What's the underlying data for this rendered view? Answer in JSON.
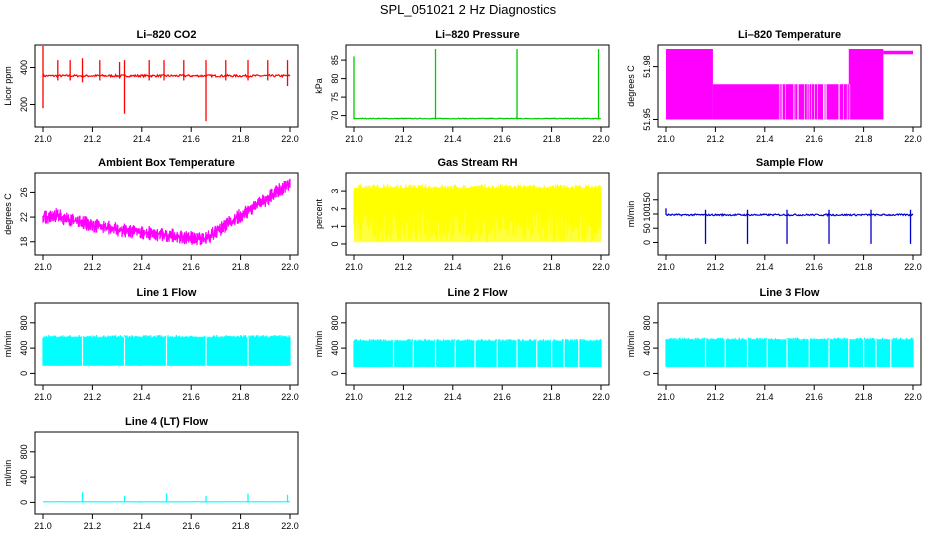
{
  "title": "SPL_051021  2 Hz Diagnostics",
  "chart_data": [
    {
      "type": "line",
      "title": "Li–820 CO2",
      "ylabel": "Licor ppm",
      "color": "#ff0000",
      "xlim": [
        21.0,
        22.0
      ],
      "ylim": [
        100,
        500
      ],
      "x_ticks": [
        "21.0",
        "21.2",
        "21.4",
        "21.6",
        "21.8",
        "22.0"
      ],
      "y_ticks": [
        200,
        400
      ],
      "series": [
        {
          "baseline": 355,
          "noise": 6,
          "spikes": [
            [
              21.0,
              520,
              180
            ],
            [
              21.06,
              440,
              330
            ],
            [
              21.11,
              440,
              330
            ],
            [
              21.16,
              450,
              320
            ],
            [
              21.23,
              440,
              330
            ],
            [
              21.31,
              430,
              340
            ],
            [
              21.33,
              440,
              150
            ],
            [
              21.43,
              440,
              330
            ],
            [
              21.49,
              440,
              330
            ],
            [
              21.57,
              440,
              330
            ],
            [
              21.66,
              440,
              110
            ],
            [
              21.74,
              440,
              330
            ],
            [
              21.83,
              440,
              330
            ],
            [
              21.91,
              440,
              330
            ],
            [
              21.99,
              440,
              300
            ]
          ]
        }
      ]
    },
    {
      "type": "line",
      "title": "Li–820 Pressure",
      "ylabel": "kPa",
      "color": "#00cc00",
      "xlim": [
        21.0,
        22.0
      ],
      "ylim": [
        68,
        88
      ],
      "x_ticks": [
        "21.0",
        "21.2",
        "21.4",
        "21.6",
        "21.8",
        "22.0"
      ],
      "y_ticks": [
        70,
        75,
        80,
        85
      ],
      "series": [
        {
          "baseline": 69.2,
          "noise": 0.1,
          "spikes": [
            [
              21.0,
              86,
              69
            ],
            [
              21.33,
              88,
              69
            ],
            [
              21.66,
              88,
              69
            ],
            [
              21.99,
              88,
              69
            ]
          ]
        }
      ]
    },
    {
      "type": "area",
      "title": "Li–820 Temperature",
      "ylabel": "degrees C",
      "color": "#ff00ff",
      "xlim": [
        21.0,
        22.0
      ],
      "ylim": [
        51.948,
        51.99
      ],
      "x_ticks": [
        "21.0",
        "21.2",
        "21.4",
        "21.6",
        "21.8",
        "22.0"
      ],
      "y_ticks": [
        51.95,
        51.98
      ],
      "segments": [
        [
          21.0,
          21.19,
          51.95,
          51.99
        ],
        [
          21.19,
          21.74,
          51.95,
          51.97
        ],
        [
          21.74,
          21.88,
          51.95,
          51.99
        ],
        [
          21.88,
          22.0,
          51.987,
          51.989
        ]
      ]
    },
    {
      "type": "line",
      "title": "Ambient Box Temperature",
      "ylabel": "degrees C",
      "color": "#ff00ff",
      "xlim": [
        21.0,
        22.0
      ],
      "ylim": [
        16.5,
        28.5
      ],
      "x_ticks": [
        "21.0",
        "21.2",
        "21.4",
        "21.6",
        "21.8",
        "22.0"
      ],
      "y_ticks": [
        18,
        22,
        26
      ],
      "series": [
        {
          "noise": 1.2,
          "points": [
            [
              21.0,
              22.0
            ],
            [
              21.05,
              22.3
            ],
            [
              21.1,
              21.7
            ],
            [
              21.2,
              20.7
            ],
            [
              21.3,
              20.0
            ],
            [
              21.4,
              19.5
            ],
            [
              21.5,
              19.1
            ],
            [
              21.6,
              18.6
            ],
            [
              21.66,
              18.4
            ],
            [
              21.7,
              19.6
            ],
            [
              21.8,
              22.3
            ],
            [
              21.9,
              24.8
            ],
            [
              22.0,
              27.5
            ]
          ]
        }
      ]
    },
    {
      "type": "area",
      "title": "Gas Stream RH",
      "ylabel": "percent",
      "color": "#ffff00",
      "xlim": [
        21.0,
        22.0
      ],
      "ylim": [
        -0.4,
        3.8
      ],
      "x_ticks": [
        "21.0",
        "21.2",
        "21.4",
        "21.6",
        "21.8",
        "22.0"
      ],
      "y_ticks": [
        0,
        1,
        2,
        3
      ],
      "band": {
        "low": 0.1,
        "high": 3.2
      }
    },
    {
      "type": "line",
      "title": "Sample Flow",
      "ylabel": "ml/min",
      "color": "#0000cc",
      "xlim": [
        21.0,
        22.0
      ],
      "ylim": [
        -30,
        230
      ],
      "x_ticks": [
        "21.0",
        "21.2",
        "21.4",
        "21.6",
        "21.8",
        "22.0"
      ],
      "y_ticks": [
        0,
        50,
        100,
        150
      ],
      "series": [
        {
          "baseline": 97,
          "noise": 3,
          "spikes": [
            [
              21.0,
              120,
              97
            ],
            [
              21.16,
              115,
              -5
            ],
            [
              21.33,
              115,
              -5
            ],
            [
              21.49,
              115,
              -5
            ],
            [
              21.66,
              115,
              -5
            ],
            [
              21.83,
              115,
              -5
            ],
            [
              21.99,
              115,
              -5
            ]
          ]
        }
      ]
    },
    {
      "type": "area",
      "title": "Line 1 Flow",
      "ylabel": "ml/min",
      "color": "#00ffff",
      "xlim": [
        21.0,
        22.0
      ],
      "ylim": [
        -120,
        1050
      ],
      "x_ticks": [
        "21.0",
        "21.2",
        "21.4",
        "21.6",
        "21.8",
        "22.0"
      ],
      "y_ticks": [
        0,
        400,
        800
      ],
      "band": {
        "low": 120,
        "high": 580
      },
      "gaps": [
        21.16,
        21.33,
        21.5,
        21.66,
        21.83
      ]
    },
    {
      "type": "area",
      "title": "Line 2 Flow",
      "ylabel": "ml/min",
      "color": "#00ffff",
      "xlim": [
        21.0,
        22.0
      ],
      "ylim": [
        -120,
        1050
      ],
      "x_ticks": [
        "21.0",
        "21.2",
        "21.4",
        "21.6",
        "21.8",
        "22.0"
      ],
      "y_ticks": [
        0,
        400,
        800
      ],
      "band": {
        "low": 100,
        "high": 520
      },
      "gaps": [
        21.16,
        21.24,
        21.33,
        21.41,
        21.49,
        21.58,
        21.66,
        21.74,
        21.8,
        21.85,
        21.91
      ]
    },
    {
      "type": "area",
      "title": "Line 3 Flow",
      "ylabel": "ml/min",
      "color": "#00ffff",
      "xlim": [
        21.0,
        22.0
      ],
      "ylim": [
        -120,
        1050
      ],
      "x_ticks": [
        "21.0",
        "21.2",
        "21.4",
        "21.6",
        "21.8",
        "22.0"
      ],
      "y_ticks": [
        0,
        400,
        800
      ],
      "band": {
        "low": 100,
        "high": 540
      },
      "gaps": [
        21.16,
        21.24,
        21.33,
        21.41,
        21.49,
        21.58,
        21.66,
        21.74,
        21.8,
        21.85,
        21.91
      ]
    },
    {
      "type": "line",
      "title": "Line 4 (LT) Flow",
      "ylabel": "ml/min",
      "color": "#00ffff",
      "xlim": [
        21.0,
        22.0
      ],
      "ylim": [
        -120,
        1050
      ],
      "x_ticks": [
        "21.0",
        "21.2",
        "21.4",
        "21.6",
        "21.8",
        "22.0"
      ],
      "y_ticks": [
        0,
        400,
        800
      ],
      "series": [
        {
          "baseline": 10,
          "noise": 2,
          "spikes": [
            [
              21.16,
              160,
              10
            ],
            [
              21.33,
              100,
              10
            ],
            [
              21.5,
              140,
              10
            ],
            [
              21.66,
              100,
              10
            ],
            [
              21.83,
              140,
              10
            ],
            [
              21.99,
              120,
              10
            ]
          ]
        }
      ]
    }
  ]
}
